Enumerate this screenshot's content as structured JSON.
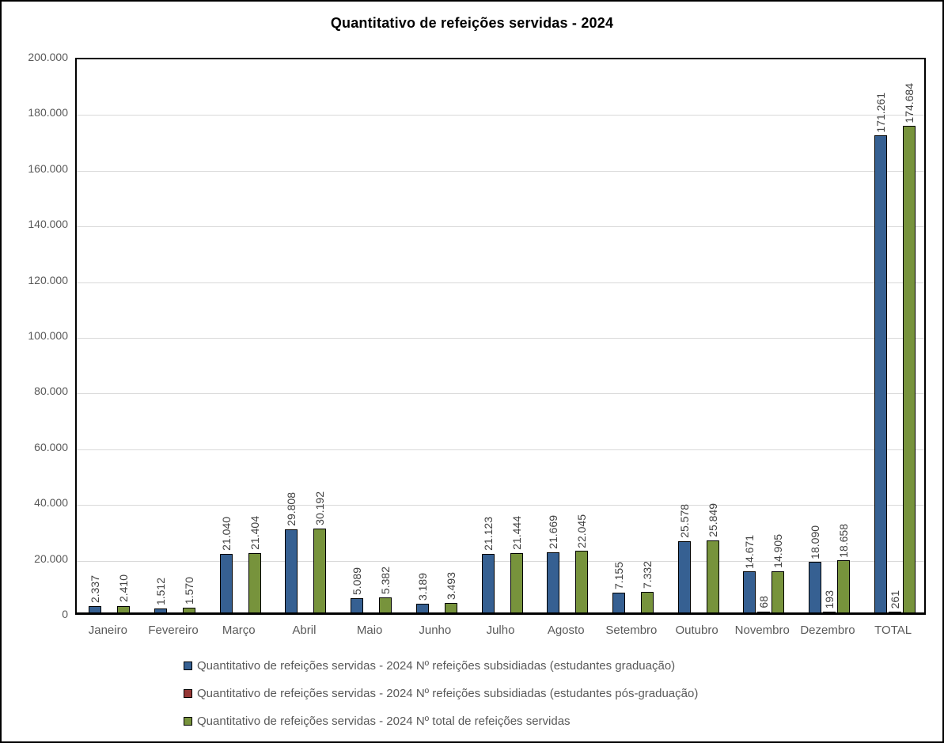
{
  "chart_data": {
    "type": "bar",
    "title": "Quantitativo de refeições servidas - 2024",
    "categories": [
      "Janeiro",
      "Fevereiro",
      "Março",
      "Abril",
      "Maio",
      "Junho",
      "Julho",
      "Agosto",
      "Setembro",
      "Outubro",
      "Novembro",
      "Dezembro",
      "TOTAL"
    ],
    "series": [
      {
        "key": "graduacao",
        "name": "Quantitativo de refeições servidas - 2024 Nº refeições subsidiadas (estudantes graduação)",
        "color": "#366092",
        "values": [
          2337,
          1512,
          21040,
          29808,
          5089,
          3189,
          21123,
          21669,
          7155,
          25578,
          14671,
          18090,
          171261
        ],
        "labels": [
          "2.337",
          "1.512",
          "21.040",
          "29.808",
          "5.089",
          "3.189",
          "21.123",
          "21.669",
          "7.155",
          "25.578",
          "14.671",
          "18.090",
          "171.261"
        ]
      },
      {
        "key": "pos-graduacao",
        "name": "Quantitativo de refeições servidas - 2024 Nº refeições subsidiadas (estudantes pós-graduação)",
        "color": "#953735",
        "values": [
          0,
          0,
          0,
          0,
          0,
          0,
          0,
          0,
          0,
          0,
          68,
          193,
          261
        ],
        "labels": [
          "",
          "",
          "",
          "",
          "",
          "",
          "",
          "",
          "",
          "",
          "68",
          "193",
          "261"
        ]
      },
      {
        "key": "total",
        "name": "Quantitativo de refeições servidas - 2024 Nº total de refeições servidas",
        "color": "#77933C",
        "values": [
          2410,
          1570,
          21404,
          30192,
          5382,
          3493,
          21444,
          22045,
          7332,
          25849,
          14905,
          18658,
          174684
        ],
        "labels": [
          "2.410",
          "1.570",
          "21.404",
          "30.192",
          "5.382",
          "3.493",
          "21.444",
          "22.045",
          "7.332",
          "25.849",
          "14.905",
          "18.658",
          "174.684"
        ]
      }
    ],
    "ylim": [
      0,
      200000
    ],
    "ytick_step": 20000,
    "yticks": [
      "200.000",
      "180.000",
      "160.000",
      "140.000",
      "120.000",
      "100.000",
      "80.000",
      "60.000",
      "40.000",
      "20.000",
      "0"
    ],
    "grid": true,
    "gridline_color": "#d9d9d9",
    "legend_position": "bottom-left"
  }
}
